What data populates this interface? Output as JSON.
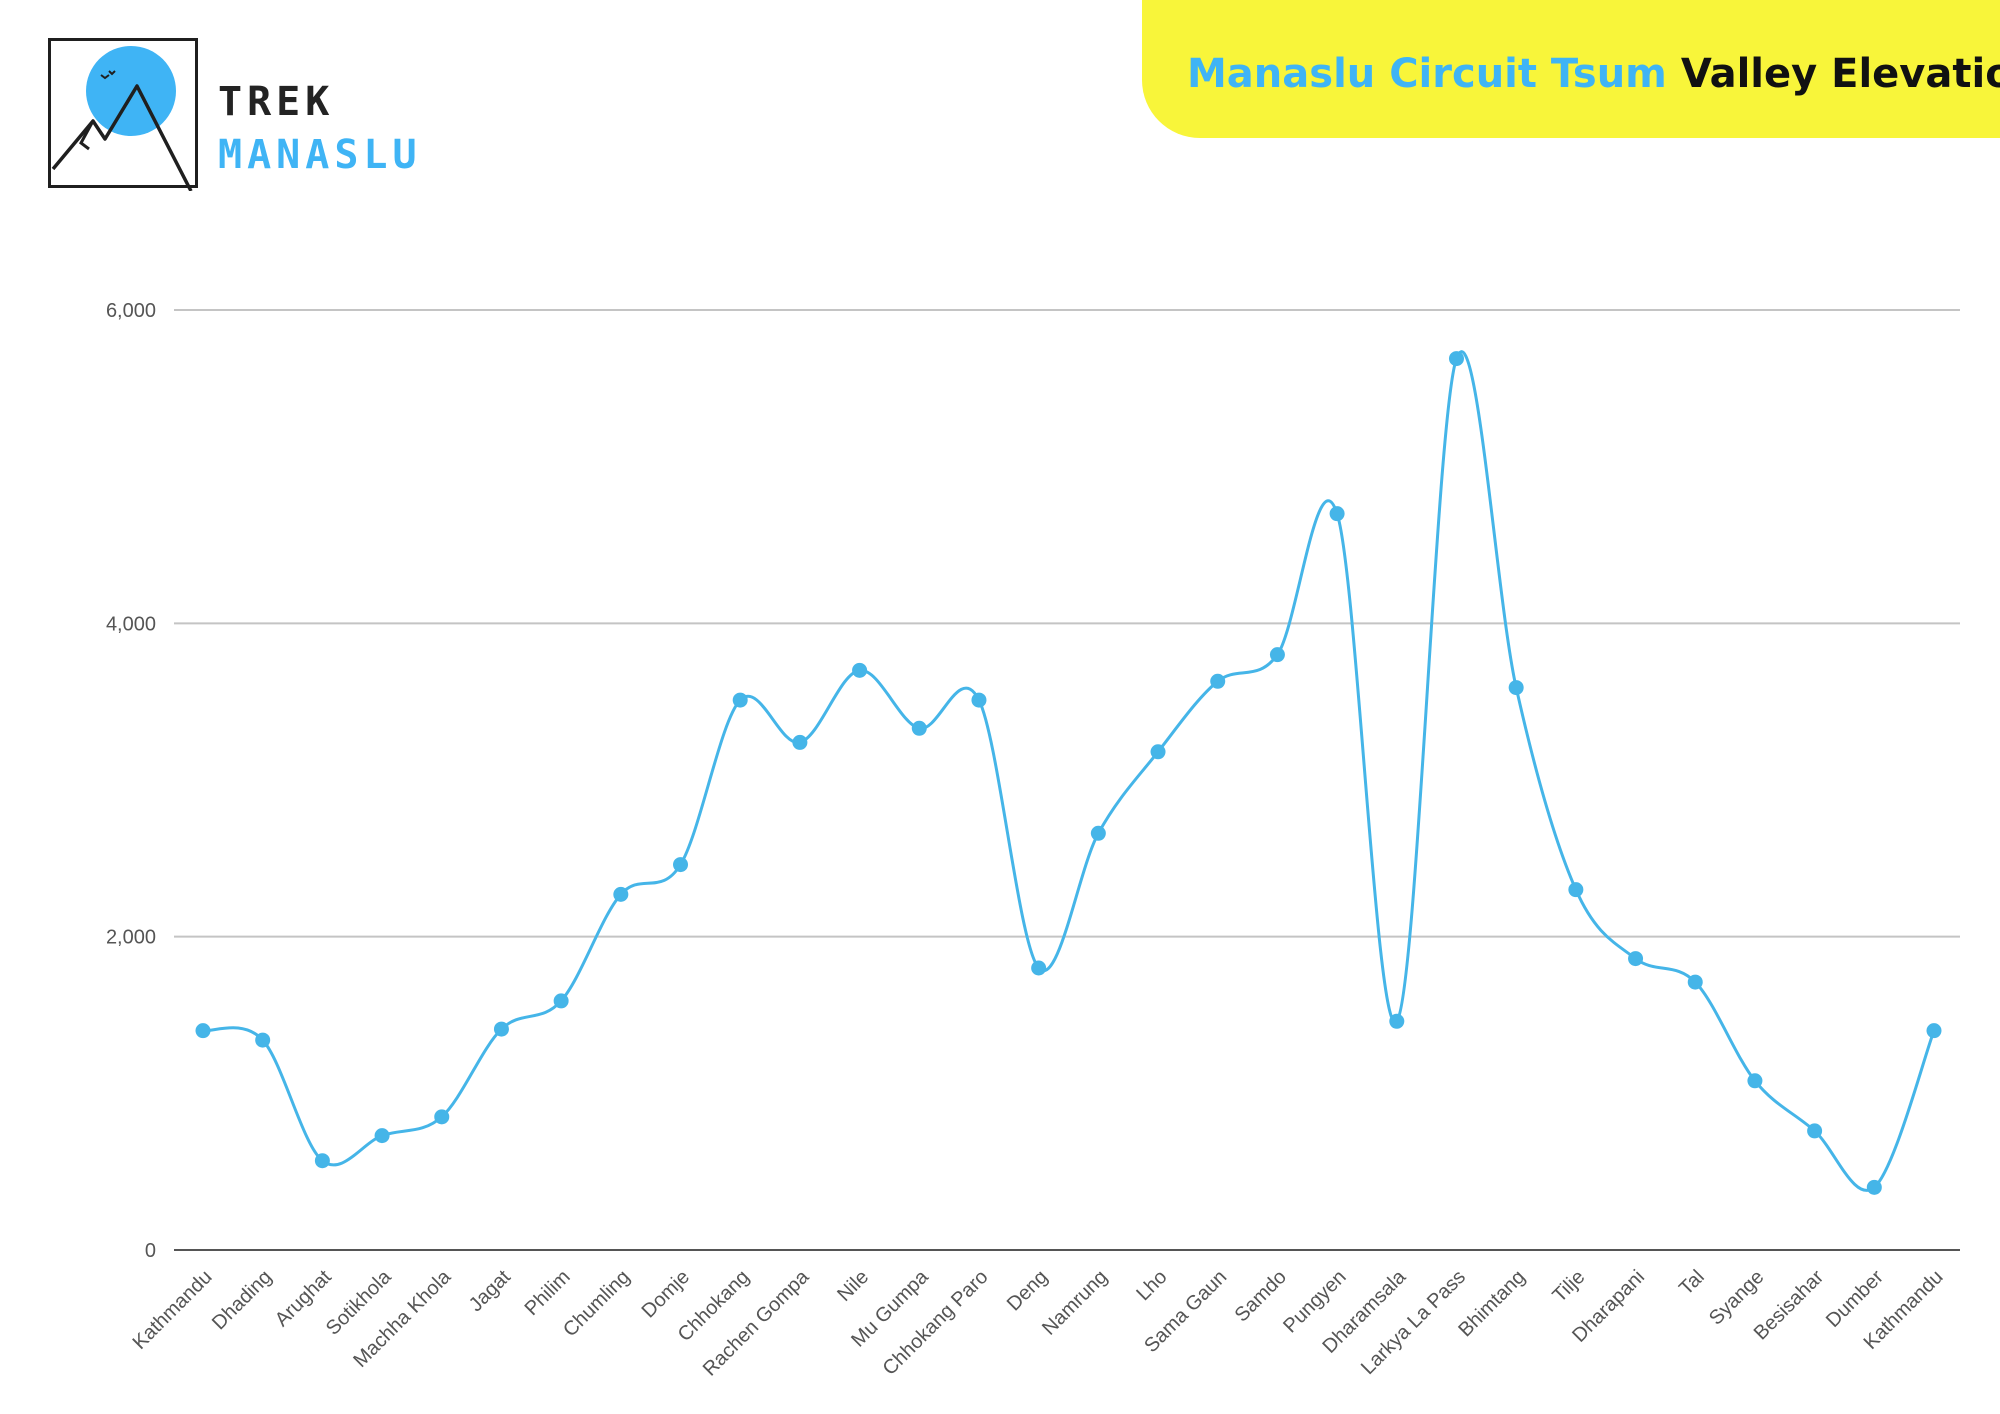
{
  "brand": {
    "line1": "TREK",
    "line2": "MANASLU",
    "line1_color": "#232323",
    "accent_color": "#3fb4f5"
  },
  "header": {
    "title_part1": "Manaslu Circuit Tsum",
    "title_part2": "Valley Elevation",
    "banner_color": "#f8f53a",
    "part1_color": "#3fb4f5",
    "part2_color": "#111111"
  },
  "chart_data": {
    "type": "line",
    "title": "",
    "xlabel": "",
    "ylabel": "",
    "ylim": [
      0,
      6000
    ],
    "yticks": [
      0,
      2000,
      4000,
      6000
    ],
    "ytick_labels": [
      "0",
      "2,000",
      "4,000",
      "6,000"
    ],
    "grid": true,
    "smooth": true,
    "line_color": "#45b5e8",
    "categories": [
      "Kathmandu",
      "Dhading",
      "Arughat",
      "Sotikhola",
      "Machha Khola",
      "Jagat",
      "Philim",
      "Chumling",
      "Domje",
      "Chhokang",
      "Rachen Gompa",
      "Nile",
      "Mu Gumpa",
      "Chhokang Paro",
      "Deng",
      "Namrung",
      "Lho",
      "Sama Gaun",
      "Samdo",
      "Pungyen",
      "Dharamsala",
      "Larkya La Pass",
      "Bhimtang",
      "Tilje",
      "Dharapani",
      "Tal",
      "Syange",
      "Besisahar",
      "Dumber",
      "Kathmandu"
    ],
    "series": [
      {
        "values": [
          1400,
          1340,
          570,
          730,
          850,
          1410,
          1590,
          2270,
          2460,
          3510,
          3240,
          3700,
          3330,
          3510,
          1800,
          2660,
          3180,
          3630,
          3800,
          4700,
          1460,
          5690,
          3590,
          2300,
          1860,
          1710,
          1080,
          760,
          400,
          1400
        ]
      }
    ]
  }
}
